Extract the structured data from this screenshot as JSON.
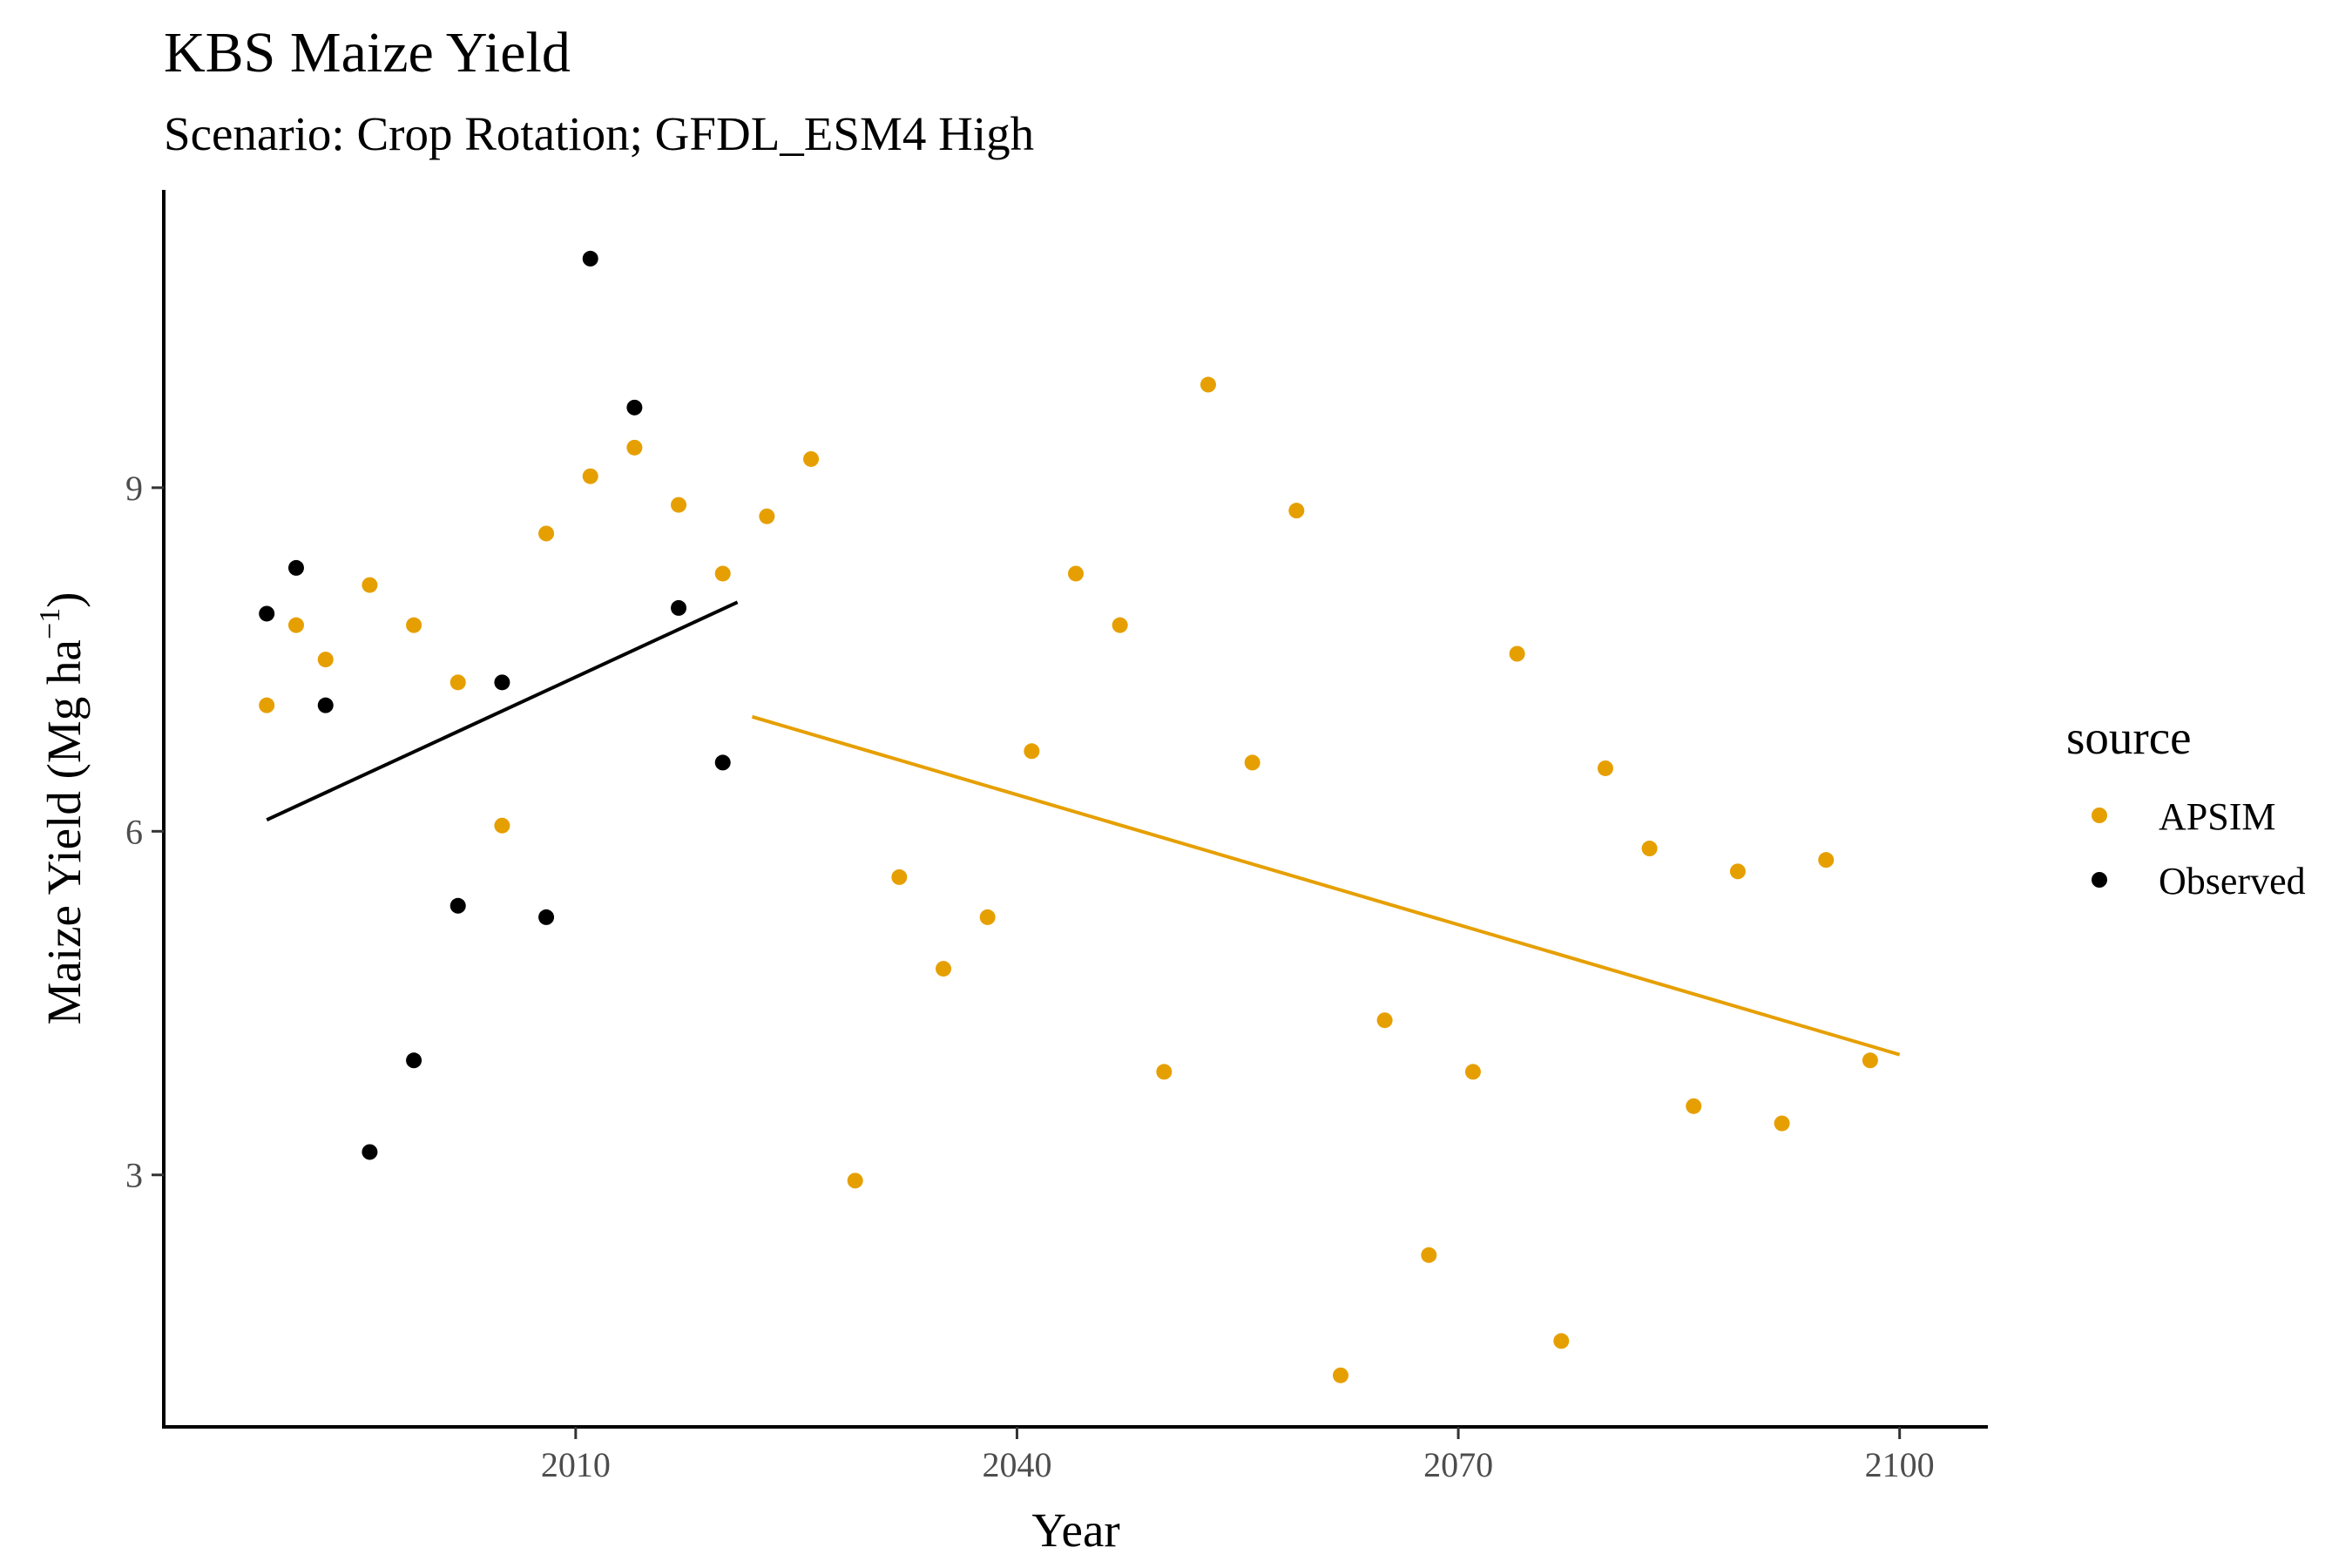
{
  "chart_data": {
    "type": "scatter",
    "title": "KBS Maize Yield",
    "subtitle": "Scenario: Crop Rotation; GFDL_ESM4 High",
    "xlabel": "Year",
    "ylabel_main": "Maize Yield (Mg ha",
    "ylabel_sup": "−1",
    "ylabel_close": ")",
    "xlim": [
      1982,
      2106
    ],
    "ylim": [
      0.8,
      11.6
    ],
    "xticks": [
      2010,
      2040,
      2070,
      2100
    ],
    "yticks": [
      3,
      6,
      9
    ],
    "grid": false,
    "legend": {
      "title": "source",
      "placement": "right",
      "entries": [
        {
          "label": "APSIM",
          "color": "#E69F00"
        },
        {
          "label": "Observed",
          "color": "#000000"
        }
      ]
    },
    "series": [
      {
        "name": "APSIM",
        "color": "#E69F00",
        "points": [
          {
            "x": 1989,
            "y": 7.1
          },
          {
            "x": 1991,
            "y": 7.8
          },
          {
            "x": 1993,
            "y": 7.5
          },
          {
            "x": 1996,
            "y": 8.15
          },
          {
            "x": 1999,
            "y": 7.8
          },
          {
            "x": 2002,
            "y": 7.3
          },
          {
            "x": 2005,
            "y": 6.05
          },
          {
            "x": 2008,
            "y": 8.6
          },
          {
            "x": 2011,
            "y": 9.1
          },
          {
            "x": 2014,
            "y": 9.35
          },
          {
            "x": 2017,
            "y": 8.85
          },
          {
            "x": 2020,
            "y": 8.25
          },
          {
            "x": 2023,
            "y": 8.75
          },
          {
            "x": 2026,
            "y": 9.25
          },
          {
            "x": 2029,
            "y": 2.95
          },
          {
            "x": 2032,
            "y": 5.6
          },
          {
            "x": 2035,
            "y": 4.8
          },
          {
            "x": 2038,
            "y": 5.25
          },
          {
            "x": 2041,
            "y": 6.7
          },
          {
            "x": 2044,
            "y": 8.25
          },
          {
            "x": 2047,
            "y": 7.8
          },
          {
            "x": 2050,
            "y": 3.9
          },
          {
            "x": 2053,
            "y": 9.9
          },
          {
            "x": 2056,
            "y": 6.6
          },
          {
            "x": 2059,
            "y": 8.8
          },
          {
            "x": 2062,
            "y": 1.25
          },
          {
            "x": 2065,
            "y": 4.35
          },
          {
            "x": 2068,
            "y": 2.3
          },
          {
            "x": 2071,
            "y": 3.9
          },
          {
            "x": 2074,
            "y": 7.55
          },
          {
            "x": 2077,
            "y": 1.55
          },
          {
            "x": 2080,
            "y": 6.55
          },
          {
            "x": 2083,
            "y": 5.85
          },
          {
            "x": 2086,
            "y": 3.6
          },
          {
            "x": 2089,
            "y": 5.65
          },
          {
            "x": 2092,
            "y": 3.45
          },
          {
            "x": 2095,
            "y": 5.75
          },
          {
            "x": 2098,
            "y": 4.0
          }
        ],
        "trend": {
          "x": [
            2022,
            2100
          ],
          "y": [
            7.0,
            4.05
          ]
        }
      },
      {
        "name": "Observed",
        "color": "#000000",
        "points": [
          {
            "x": 1989,
            "y": 7.9
          },
          {
            "x": 1991,
            "y": 8.3
          },
          {
            "x": 1993,
            "y": 7.1
          },
          {
            "x": 1996,
            "y": 3.2
          },
          {
            "x": 1999,
            "y": 4.0
          },
          {
            "x": 2002,
            "y": 5.35
          },
          {
            "x": 2005,
            "y": 7.3
          },
          {
            "x": 2008,
            "y": 5.25
          },
          {
            "x": 2011,
            "y": 11.0
          },
          {
            "x": 2014,
            "y": 9.7
          },
          {
            "x": 2017,
            "y": 7.95
          },
          {
            "x": 2020,
            "y": 6.6
          }
        ],
        "trend": {
          "x": [
            1989,
            2021
          ],
          "y": [
            6.1,
            8.0
          ]
        }
      }
    ]
  }
}
